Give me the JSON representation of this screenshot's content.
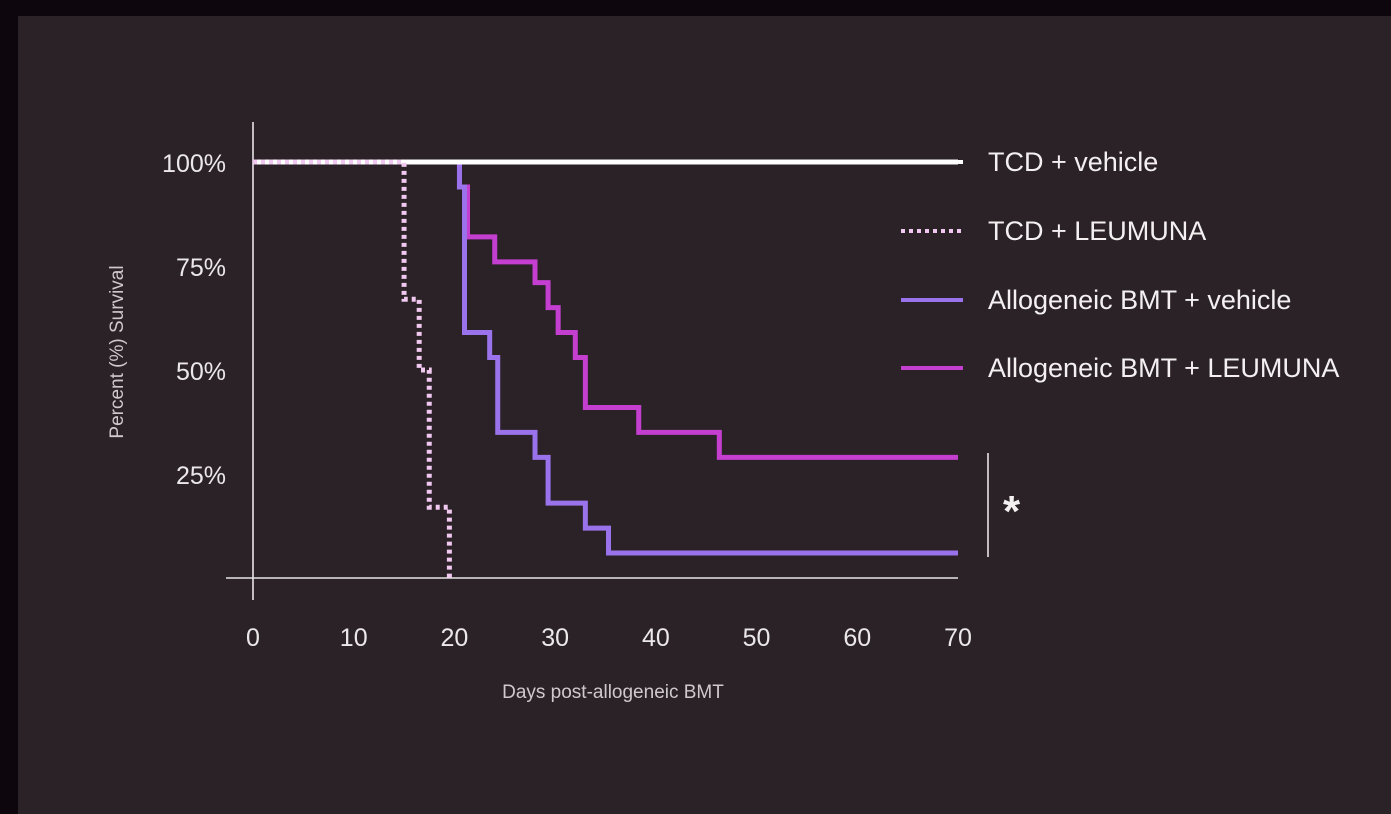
{
  "chart_data": {
    "type": "line",
    "subtype": "kaplan-meier step plot",
    "xlabel": "Days post-allogeneic BMT",
    "ylabel": "Percent (%) Survival",
    "xlim": [
      0,
      70
    ],
    "ylim": [
      0,
      100
    ],
    "x_ticks": [
      0,
      10,
      20,
      30,
      40,
      50,
      60,
      70
    ],
    "x_tick_labels": [
      "0",
      "10",
      "20",
      "30",
      "40",
      "50",
      "60",
      "70"
    ],
    "y_ticks": [
      100,
      75,
      50,
      25
    ],
    "y_tick_labels": [
      "100%",
      "75%",
      "50%",
      "25%"
    ],
    "grid": false,
    "legend_position": "top-right",
    "annotation": {
      "text": "*",
      "bracket_between": [
        "Allogeneic BMT + LEUMUNA",
        "Allogeneic BMT + vehicle"
      ]
    },
    "series": [
      {
        "name": "TCD + vehicle",
        "color": "#ffffff",
        "style": "solid",
        "steps": [
          [
            0,
            100
          ],
          [
            70,
            100
          ]
        ]
      },
      {
        "name": "TCD + LEUMUNA",
        "color": "#f0c8f0",
        "style": "dotted",
        "steps": [
          [
            0,
            100
          ],
          [
            15,
            67
          ],
          [
            16.5,
            50
          ],
          [
            17.5,
            17
          ],
          [
            19.5,
            0
          ]
        ]
      },
      {
        "name": "Allogeneic BMT + vehicle",
        "color": "#9a73ec",
        "style": "solid",
        "steps": [
          [
            0,
            100
          ],
          [
            20.5,
            94
          ],
          [
            21,
            59
          ],
          [
            23.5,
            53
          ],
          [
            24.3,
            35
          ],
          [
            28,
            29
          ],
          [
            29.3,
            18
          ],
          [
            33,
            12
          ],
          [
            35.3,
            6
          ],
          [
            70,
            6
          ]
        ]
      },
      {
        "name": "Allogeneic BMT + LEUMUNA",
        "color": "#c43fd0",
        "style": "solid",
        "steps": [
          [
            0,
            100
          ],
          [
            20.5,
            94
          ],
          [
            21.3,
            82
          ],
          [
            24,
            76
          ],
          [
            28,
            71
          ],
          [
            29.3,
            65
          ],
          [
            30.3,
            59
          ],
          [
            32,
            53
          ],
          [
            33,
            41
          ],
          [
            38.3,
            35
          ],
          [
            46.3,
            29
          ],
          [
            70,
            29
          ]
        ]
      }
    ]
  }
}
